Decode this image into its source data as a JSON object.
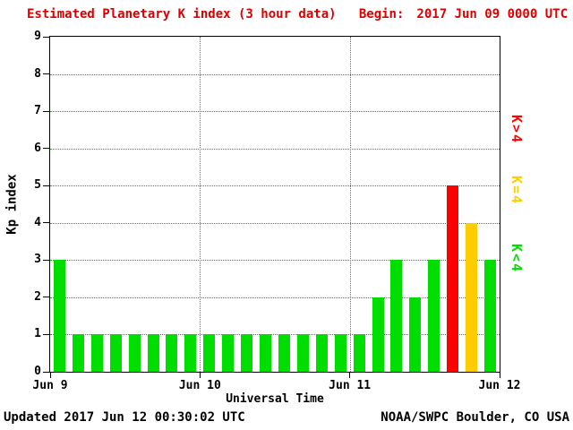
{
  "header": {
    "title": "Estimated Planetary K index (3 hour data)",
    "begin_label": "Begin:",
    "begin_value": "2017 Jun 09 0000 UTC",
    "title_color": "#dd0000"
  },
  "axes": {
    "y_label": "Kp index",
    "x_label": "Universal Time"
  },
  "legend": [
    {
      "id": "gt4",
      "label": "K>4",
      "color": "#ff0000"
    },
    {
      "id": "eq4",
      "label": "K=4",
      "color": "#ffcc00"
    },
    {
      "id": "lt4",
      "label": "K<4",
      "color": "#00dd00"
    }
  ],
  "footer": {
    "updated": "Updated 2017 Jun 12 00:30:02 UTC",
    "credit": "NOAA/SWPC Boulder, CO USA"
  },
  "chart_data": {
    "type": "bar",
    "title": "Estimated Planetary K index (3 hour data)",
    "xlabel": "Universal Time",
    "ylabel": "Kp index",
    "ylim": [
      0,
      9
    ],
    "yticks": [
      0,
      1,
      2,
      3,
      4,
      5,
      6,
      7,
      8,
      9
    ],
    "xtick_labels": [
      "Jun 9",
      "Jun 10",
      "Jun 11",
      "Jun 12"
    ],
    "bin_hours": 3,
    "begin": "2017 Jun 09 0000 UTC",
    "values": [
      3,
      1,
      1,
      1,
      1,
      1,
      1,
      1,
      1,
      1,
      1,
      1,
      1,
      1,
      1,
      1,
      1,
      2,
      3,
      2,
      3,
      5,
      4,
      3
    ],
    "colors": {
      "lt4": "#00dd00",
      "eq4": "#ffcc00",
      "gt4": "#ff0000",
      "grid": "#00bb00"
    },
    "color_rule": "green if K<4, yellow if K=4, red if K>4",
    "grid": true,
    "legend_position": "right"
  }
}
